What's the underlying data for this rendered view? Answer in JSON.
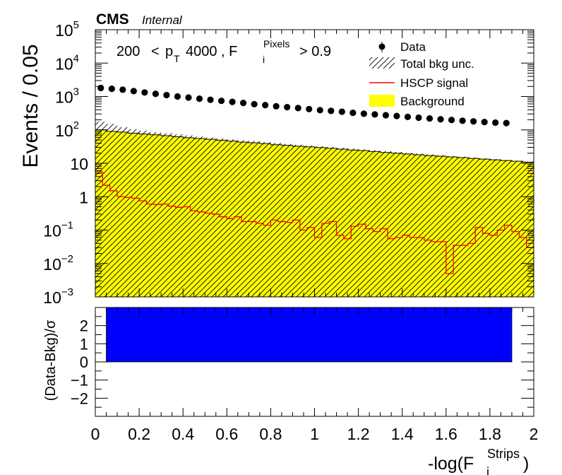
{
  "header": {
    "experiment": "CMS",
    "status": "Internal"
  },
  "selection": {
    "pt_low": "200",
    "lt": "<",
    "p": "p",
    "p_sub": "T",
    "pt_high": "4000 , F",
    "f_sup": "Pixels",
    "f_sub": "i",
    "cut": "> 0.9"
  },
  "legend": {
    "data": "Data",
    "unc": "Total bkg unc.",
    "signal": "HSCP signal",
    "background": "Background"
  },
  "axes": {
    "ylabel_top": "Events / 0.05",
    "ylabel_bottom": "(Data-Bkg)/σ",
    "xlabel_main": "-log(F",
    "xlabel_sup": "Strips",
    "xlabel_sub": "i",
    "xlabel_close": ")"
  },
  "colors": {
    "data": "#000000",
    "background": "#ffff00",
    "signal": "#ff0000",
    "ratio": "#0000ff",
    "hatch": "#000000"
  },
  "chart_data": [
    {
      "type": "bar",
      "scale": "log",
      "xlim": [
        0,
        2
      ],
      "ylim": [
        0.001,
        100000
      ],
      "bin_width": 0.05,
      "x_ticks": [
        "0",
        "0.2",
        "0.4",
        "0.6",
        "0.8",
        "1",
        "1.2",
        "1.4",
        "1.6",
        "1.8",
        "2"
      ],
      "y_ticks": [
        {
          "base": "10",
          "exp": "5",
          "v": 100000
        },
        {
          "base": "10",
          "exp": "4",
          "v": 10000
        },
        {
          "base": "10",
          "exp": "3",
          "v": 1000
        },
        {
          "base": "10",
          "exp": "2",
          "v": 100
        },
        {
          "base": "10",
          "exp": "",
          "v": 10
        },
        {
          "base": "1",
          "exp": "",
          "v": 1
        },
        {
          "base": "10",
          "exp": "−1",
          "v": 0.1
        },
        {
          "base": "10",
          "exp": "−2",
          "v": 0.01
        },
        {
          "base": "10",
          "exp": "−3",
          "v": 0.001
        }
      ],
      "series": [
        {
          "name": "Data",
          "x": [
            0.025,
            0.075,
            0.125,
            0.175,
            0.225,
            0.275,
            0.325,
            0.375,
            0.425,
            0.475,
            0.525,
            0.575,
            0.625,
            0.675,
            0.725,
            0.775,
            0.825,
            0.875,
            0.925,
            0.975,
            1.025,
            1.075,
            1.125,
            1.175,
            1.225,
            1.275,
            1.325,
            1.375,
            1.425,
            1.475,
            1.525,
            1.575,
            1.625,
            1.675,
            1.725,
            1.775,
            1.825,
            1.875
          ],
          "values": [
            1800,
            1700,
            1600,
            1450,
            1320,
            1200,
            1100,
            1000,
            930,
            860,
            800,
            740,
            690,
            640,
            590,
            550,
            510,
            480,
            450,
            420,
            390,
            370,
            350,
            325,
            305,
            290,
            275,
            260,
            245,
            232,
            220,
            208,
            198,
            188,
            180,
            172,
            165,
            160
          ]
        },
        {
          "name": "Background",
          "values": [
            100,
            90,
            86,
            80,
            75,
            71,
            67,
            62,
            58,
            55,
            52,
            49,
            46,
            43,
            41,
            39,
            36,
            34.5,
            32.5,
            31,
            29.5,
            28,
            26.5,
            25,
            24,
            22.5,
            21,
            20,
            19,
            18,
            17,
            16.3,
            15.5,
            14.8,
            14,
            13.3,
            12.7,
            12.1,
            11.5,
            10.8
          ]
        },
        {
          "name": "Total bkg unc.",
          "values": [
            175,
            150,
            120,
            105,
            95,
            86,
            80,
            74,
            68,
            63,
            59,
            55,
            52,
            49,
            46,
            43,
            40.5,
            38,
            36,
            34,
            32.5,
            31,
            29,
            27.5,
            26,
            24.5,
            23,
            22,
            20.5,
            19.5,
            18.5,
            17.5,
            16.5,
            15.8,
            15,
            14.2,
            13.4,
            12.7,
            12,
            11.3
          ]
        },
        {
          "name": "HSCP signal",
          "values": [
            5.5,
            2.2,
            1.5,
            1.0,
            0.95,
            0.9,
            0.75,
            0.6,
            0.58,
            0.6,
            0.52,
            0.48,
            0.5,
            0.38,
            0.35,
            0.32,
            0.3,
            0.25,
            0.22,
            0.25,
            0.18,
            0.18,
            0.16,
            0.14,
            0.2,
            0.18,
            0.17,
            0.2,
            0.1,
            0.12,
            0.06,
            0.16,
            0.18,
            0.07,
            0.055,
            0.13,
            0.15,
            0.11,
            0.09,
            0.11,
            0.055,
            0.06,
            0.07,
            0.06,
            0.06,
            0.05,
            0.045,
            0.045,
            0.005,
            0.035,
            0.035,
            0.04,
            0.12,
            0.08,
            0.07,
            0.1,
            0.14,
            0.09,
            0.06,
            0.03
          ]
        }
      ]
    },
    {
      "type": "bar",
      "xlim": [
        0,
        2
      ],
      "ylim": [
        -3,
        3
      ],
      "y_ticks": [
        "2",
        "1",
        "0",
        "−1",
        "−2"
      ],
      "x": [
        0.05,
        1.9
      ],
      "values": [
        3,
        3
      ],
      "series_name": "(Data-Bkg)/σ"
    }
  ]
}
